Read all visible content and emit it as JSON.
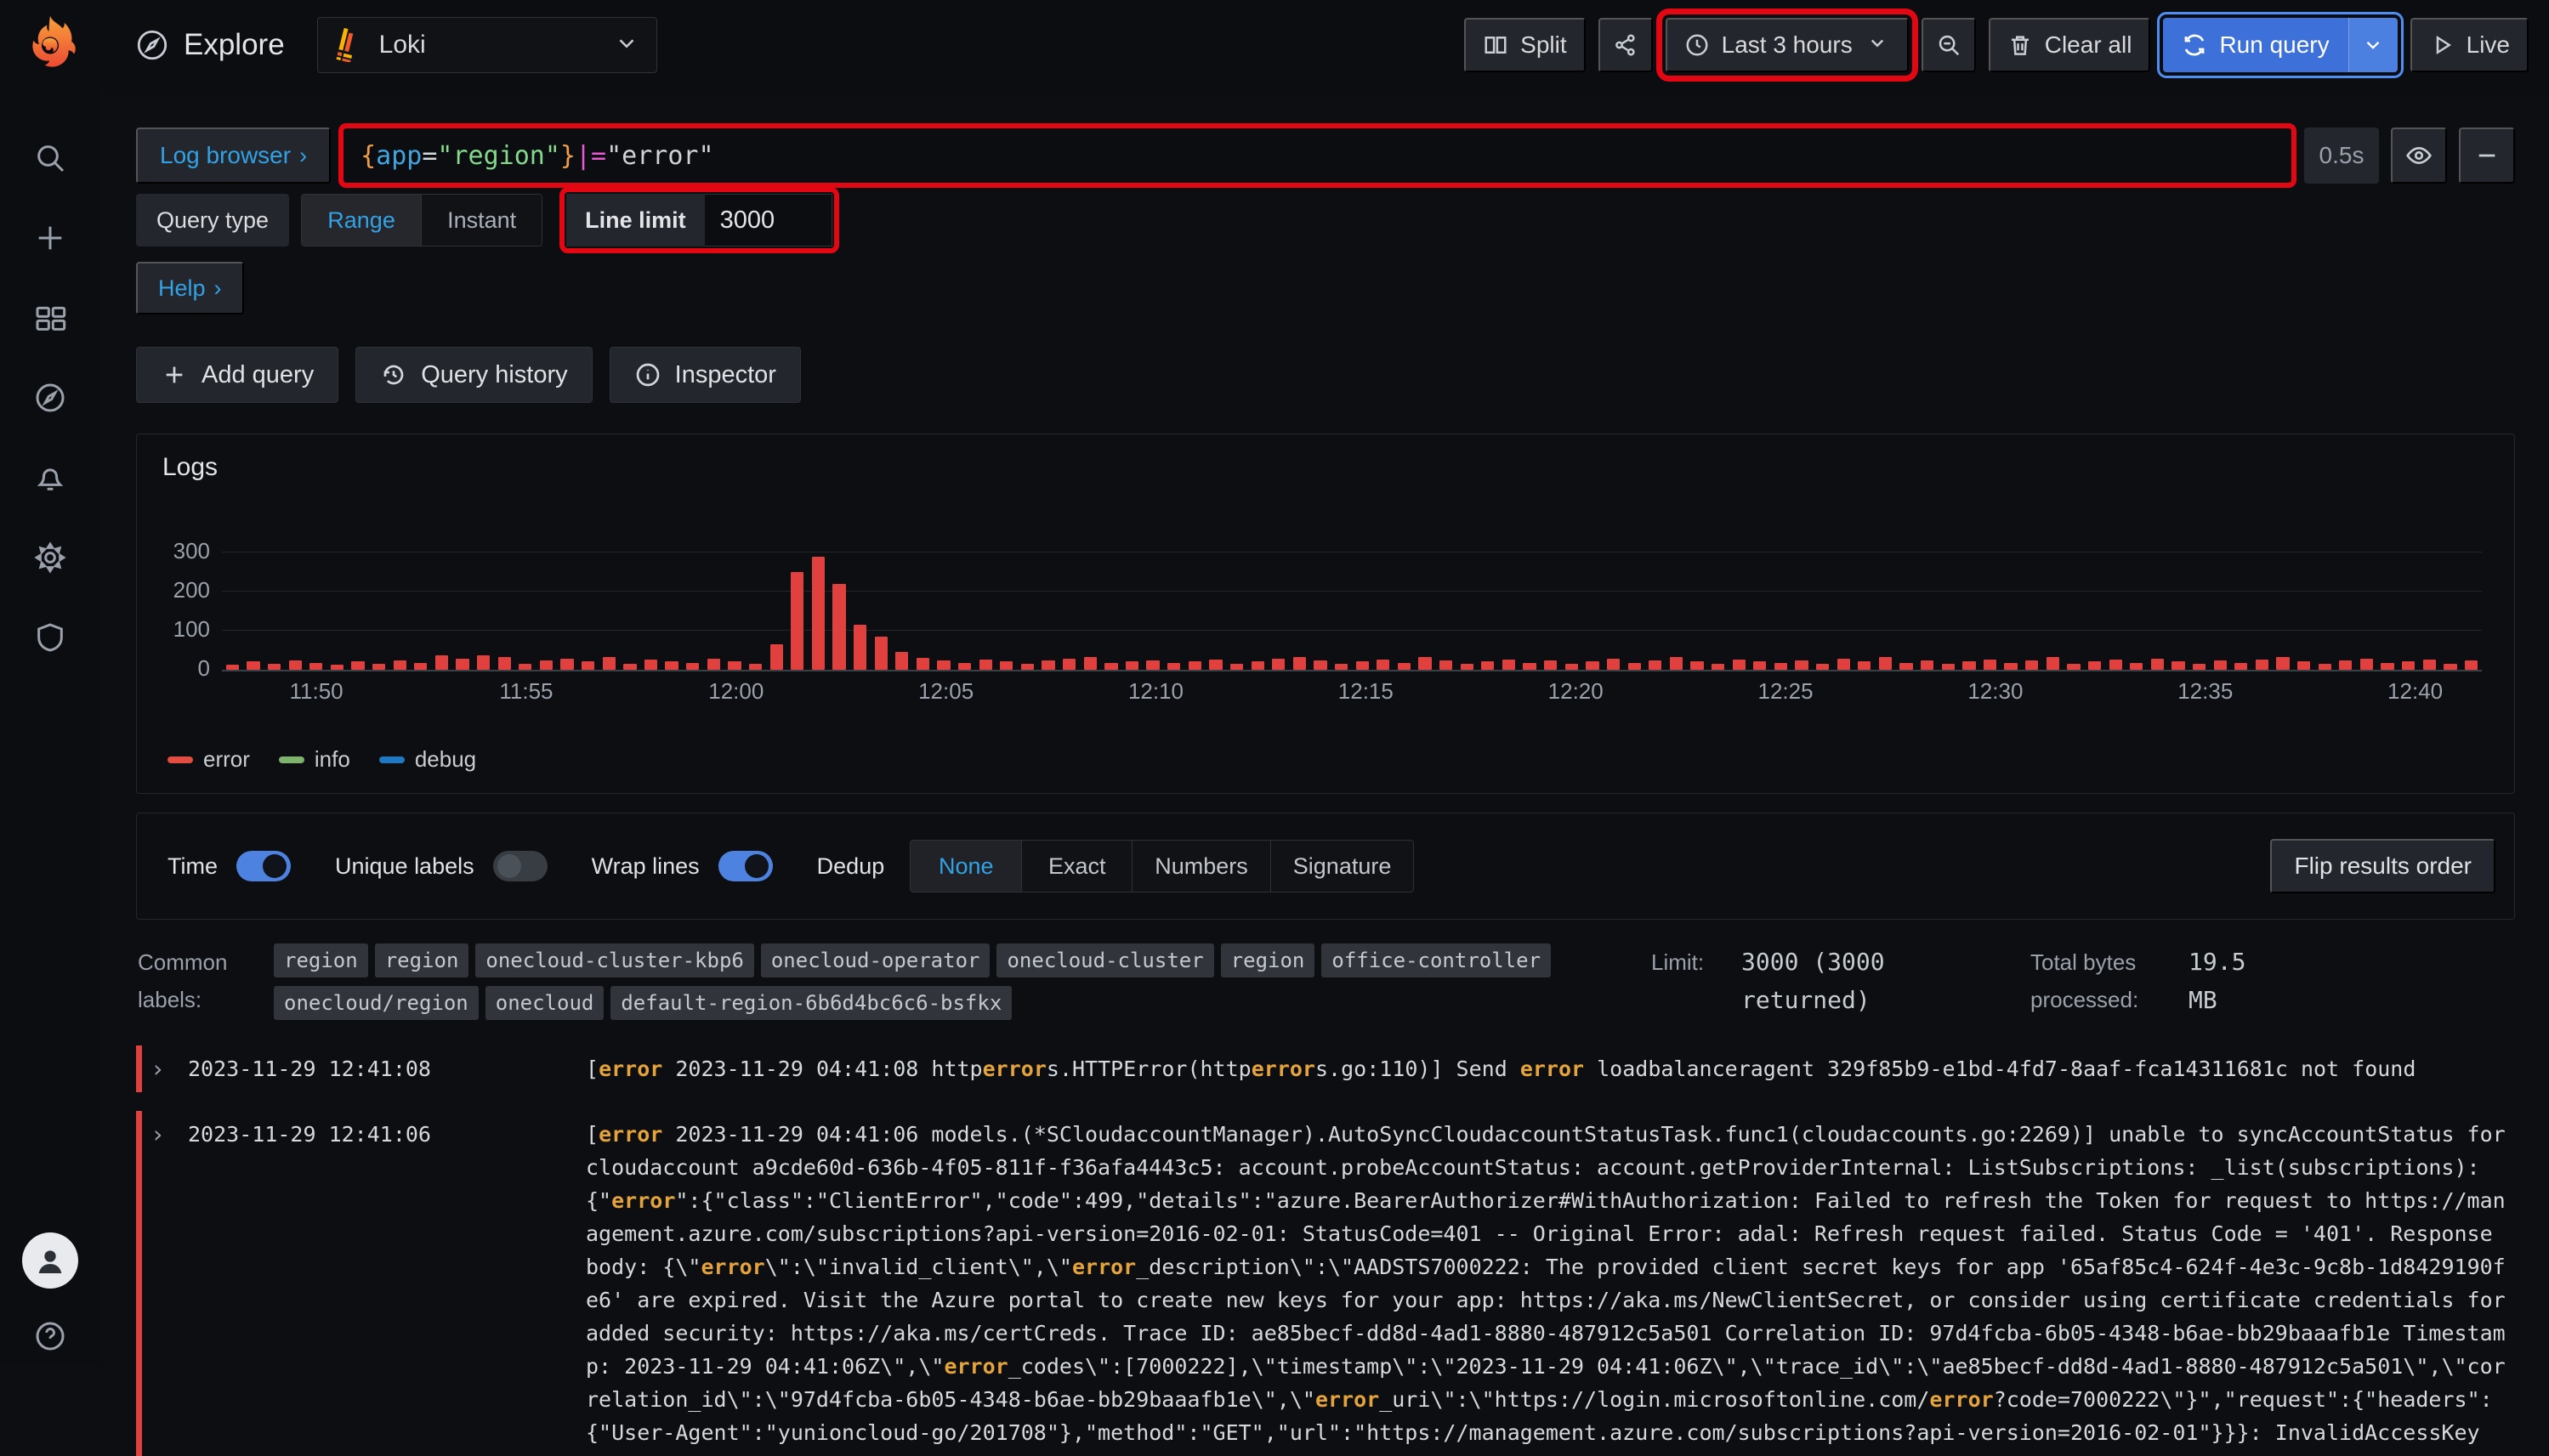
{
  "sidebar": {
    "icons": [
      "search-icon",
      "add-icon",
      "dashboards-icon",
      "explore-icon",
      "alerting-icon",
      "settings-icon",
      "admin-shield-icon",
      "profile-avatar",
      "help-icon"
    ]
  },
  "header": {
    "app_title": "Explore",
    "datasource": "Loki",
    "split_label": "Split",
    "time_range": "Last 3 hours",
    "clear_all_label": "Clear all",
    "run_query_label": "Run query",
    "live_label": "Live"
  },
  "query_row": {
    "log_browser_label": "Log browser",
    "query_tokens": [
      {
        "t": "{",
        "c": "brace"
      },
      {
        "t": "app",
        "c": "key"
      },
      {
        "t": "=",
        "c": "op"
      },
      {
        "t": "\"region\"",
        "c": "str"
      },
      {
        "t": "}",
        "c": "brace"
      },
      {
        "t": " |= ",
        "c": "pipe"
      },
      {
        "t": "\"error\"",
        "c": "plain"
      }
    ],
    "duration": "0.5s"
  },
  "query_opts": {
    "query_type_label": "Query type",
    "range_label": "Range",
    "instant_label": "Instant",
    "line_limit_label": "Line limit",
    "line_limit_value": "3000",
    "help_label": "Help"
  },
  "toolbar": {
    "add_query_label": "Add query",
    "query_history_label": "Query history",
    "inspector_label": "Inspector"
  },
  "chart_data": {
    "type": "bar",
    "title": "Logs",
    "ylabel": "",
    "xlabel": "",
    "ylim": [
      0,
      358
    ],
    "yticks": [
      0,
      100,
      200,
      300
    ],
    "grid": true,
    "legend_position": "bottom-left",
    "series": [
      {
        "name": "error",
        "color": "#e24d42"
      },
      {
        "name": "info",
        "color": "#7eb26d"
      },
      {
        "name": "debug",
        "color": "#1f78c1"
      }
    ],
    "note": "30-second buckets from ~11:48 to ~12:41; only the error series has visible values",
    "values": [
      12,
      22,
      16,
      25,
      18,
      14,
      22,
      16,
      25,
      18,
      36,
      28,
      38,
      33,
      16,
      25,
      28,
      22,
      33,
      16,
      27,
      22,
      18,
      28,
      22,
      16,
      65,
      250,
      290,
      220,
      115,
      85,
      45,
      30,
      25,
      18,
      27,
      22,
      16,
      25,
      28,
      32,
      18,
      22,
      25,
      18,
      22,
      27,
      16,
      22,
      28,
      32,
      25,
      16,
      22,
      27,
      18,
      32,
      25,
      16,
      22,
      27,
      18,
      25,
      16,
      22,
      28,
      18,
      25,
      32,
      22,
      16,
      27,
      22,
      18,
      25,
      16,
      28,
      22,
      32,
      18,
      25,
      16,
      22,
      27,
      18,
      25,
      32,
      16,
      22,
      27,
      18,
      28,
      22,
      16,
      25,
      18,
      27,
      32,
      22,
      16,
      25,
      28,
      18,
      22,
      27,
      16,
      25
    ],
    "xticks": [
      {
        "i": 4,
        "label": "11:50"
      },
      {
        "i": 14,
        "label": "11:55"
      },
      {
        "i": 24,
        "label": "12:00"
      },
      {
        "i": 34,
        "label": "12:05"
      },
      {
        "i": 44,
        "label": "12:10"
      },
      {
        "i": 54,
        "label": "12:15"
      },
      {
        "i": 64,
        "label": "12:20"
      },
      {
        "i": 74,
        "label": "12:25"
      },
      {
        "i": 84,
        "label": "12:30"
      },
      {
        "i": 94,
        "label": "12:35"
      },
      {
        "i": 104,
        "label": "12:40"
      }
    ]
  },
  "options": {
    "toggles": [
      {
        "label": "Time",
        "on": true
      },
      {
        "label": "Unique labels",
        "on": false
      },
      {
        "label": "Wrap lines",
        "on": true
      }
    ],
    "dedup_label": "Dedup",
    "dedup_options": [
      "None",
      "Exact",
      "Numbers",
      "Signature"
    ],
    "dedup_selected": "None",
    "flip_label": "Flip results order"
  },
  "meta": {
    "common_labels_label": "Common labels:",
    "labels": [
      "region",
      "region",
      "onecloud-cluster-kbp6",
      "onecloud-operator",
      "onecloud-cluster",
      "region",
      "office-controller",
      "onecloud/region",
      "onecloud",
      "default-region-6b6d4bc6c6-bsfkx"
    ],
    "limit_label": "Limit:",
    "limit_value": "3000 (3000 returned)",
    "bytes_label": "Total bytes processed:",
    "bytes_value": "19.5  MB"
  },
  "logs": {
    "rows": [
      {
        "time": "2023-11-29 12:41:08",
        "message": "[error 2023-11-29 04:41:08 httperrors.HTTPError(httperrors.go:110)] Send error loadbalanceragent 329f85b9-e1bd-4fd7-8aaf-fca14311681c not found"
      },
      {
        "time": "2023-11-29 12:41:06",
        "message": "[error 2023-11-29 04:41:06 models.(*SCloudaccountManager).AutoSyncCloudaccountStatusTask.func1(cloudaccounts.go:2269)] unable to syncAccountStatus for cloudaccount a9cde60d-636b-4f05-811f-f36afa4443c5: account.probeAccountStatus: account.getProviderInternal: ListSubscriptions: _list(subscriptions): {\"error\":{\"class\":\"ClientError\",\"code\":499,\"details\":\"azure.BearerAuthorizer#WithAuthorization: Failed to refresh the Token for request to https://management.azure.com/subscriptions?api-version=2016-02-01: StatusCode=401 -- Original Error: adal: Refresh request failed. Status Code = '401'. Response body: {\\\"error\\\":\\\"invalid_client\\\",\\\"error_description\\\":\\\"AADSTS7000222: The provided client secret keys for app '65af85c4-624f-4e3c-9c8b-1d8429190fe6' are expired. Visit the Azure portal to create new keys for your app: https://aka.ms/NewClientSecret, or consider using certificate credentials for added security: https://aka.ms/certCreds. Trace ID: ae85becf-dd8d-4ad1-8880-487912c5a501 Correlation ID: 97d4fcba-6b05-4348-b6ae-bb29baaafb1e Timestamp: 2023-11-29 04:41:06Z\\\",\\\"error_codes\\\":[7000222],\\\"timestamp\\\":\\\"2023-11-29 04:41:06Z\\\",\\\"trace_id\\\":\\\"ae85becf-dd8d-4ad1-8880-487912c5a501\\\",\\\"correlation_id\\\":\\\"97d4fcba-6b05-4348-b6ae-bb29baaafb1e\\\",\\\"error_uri\\\":\\\"https://login.microsoftonline.com/error?code=7000222\\\"}\",\"request\":{\"headers\":{\"User-Agent\":\"yunioncloud-go/201708\"},\"method\":\"GET\",\"url\":\"https://management.azure.com/subscriptions?api-version=2016-02-01\"}}}: InvalidAccessKey"
      }
    ]
  },
  "colors": {
    "accent_blue": "#3d71d9",
    "link_blue": "#33a2e5",
    "bar_red": "#e0413e",
    "highlight_orange": "#e5a33c",
    "annotation_red": "#e30613"
  }
}
